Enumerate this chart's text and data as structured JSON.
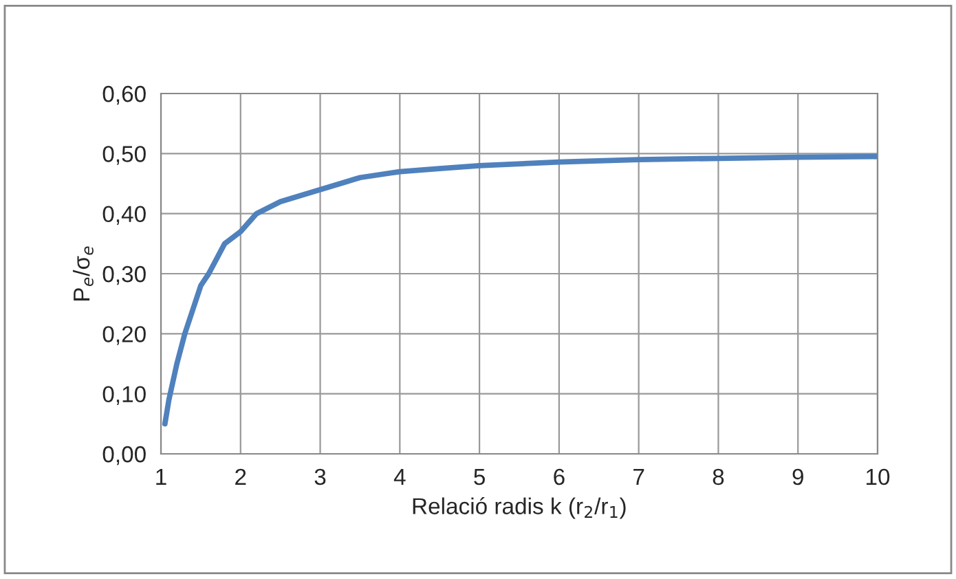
{
  "chart_data": {
    "type": "line",
    "xlabel": "Relació radis k (r$_{2}$/r$_{1}$)",
    "ylabel": "P$_{e}$/σ$_{e}$",
    "x": [
      1.05,
      1.1,
      1.2,
      1.3,
      1.4,
      1.5,
      1.6,
      1.8,
      2,
      2.2,
      2.5,
      3,
      3.5,
      4,
      4.5,
      5,
      6,
      7,
      8,
      9,
      10
    ],
    "series": [
      {
        "color": "#4f81bd",
        "values": [
          0.05,
          0.09,
          0.15,
          0.2,
          0.24,
          0.28,
          0.3,
          0.35,
          0.37,
          0.4,
          0.42,
          0.44,
          0.46,
          0.47,
          0.475,
          0.48,
          0.486,
          0.49,
          0.492,
          0.494,
          0.495
        ]
      }
    ],
    "xlim": [
      1,
      10
    ],
    "xticks": [
      1,
      2,
      3,
      4,
      5,
      6,
      7,
      8,
      9,
      10
    ],
    "ylim": [
      0,
      0.6
    ],
    "yticks": [
      {
        "value": 0,
        "label": "0,00"
      },
      {
        "value": 0.1,
        "label": "0,10"
      },
      {
        "value": 0.2,
        "label": "0,20"
      },
      {
        "value": 0.3,
        "label": "0,30"
      },
      {
        "value": 0.4,
        "label": "0,40"
      },
      {
        "value": 0.5,
        "label": "0,50"
      },
      {
        "value": 0.6,
        "label": "0,60"
      }
    ],
    "grid": true,
    "legend": false,
    "marker": "none",
    "line_style": "solid"
  }
}
